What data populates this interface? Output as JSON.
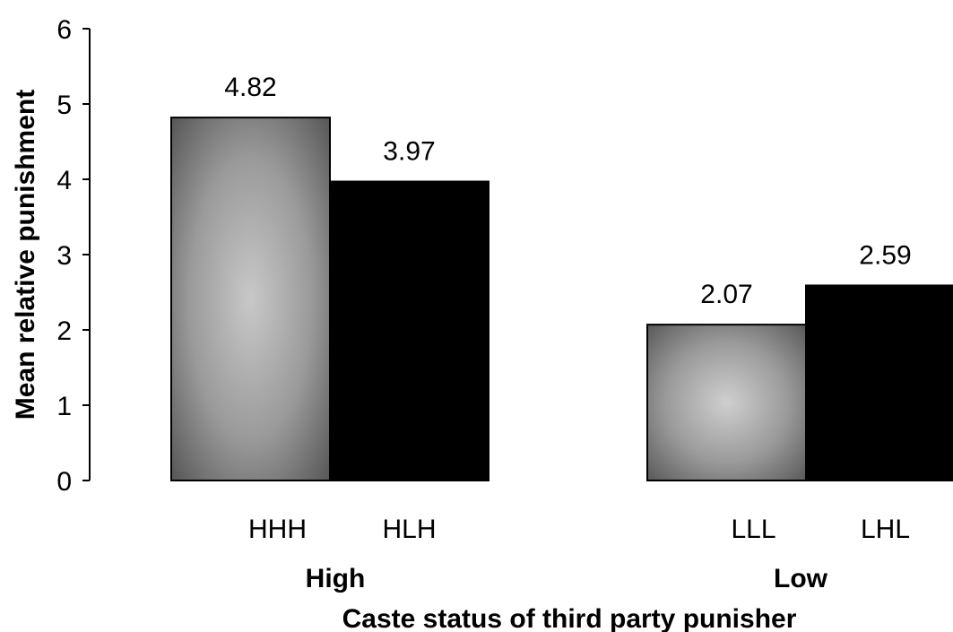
{
  "chart_data": {
    "type": "bar",
    "ylabel": "Mean relative punishment",
    "xlabel": "Caste status of third party punisher",
    "ylim": [
      0,
      6
    ],
    "yticks": [
      "0",
      "1",
      "2",
      "3",
      "4",
      "5",
      "6"
    ],
    "grid": false,
    "groups": [
      {
        "label": "High",
        "bars": [
          {
            "label": "HHH",
            "value": 4.82,
            "value_label": "4.82",
            "fill": "gradient"
          },
          {
            "label": "HLH",
            "value": 3.97,
            "value_label": "3.97",
            "fill": "#000000"
          }
        ]
      },
      {
        "label": "Low",
        "bars": [
          {
            "label": "LLL",
            "value": 2.07,
            "value_label": "2.07",
            "fill": "gradient"
          },
          {
            "label": "LHL",
            "value": 2.59,
            "value_label": "2.59",
            "fill": "#000000"
          }
        ]
      }
    ]
  }
}
